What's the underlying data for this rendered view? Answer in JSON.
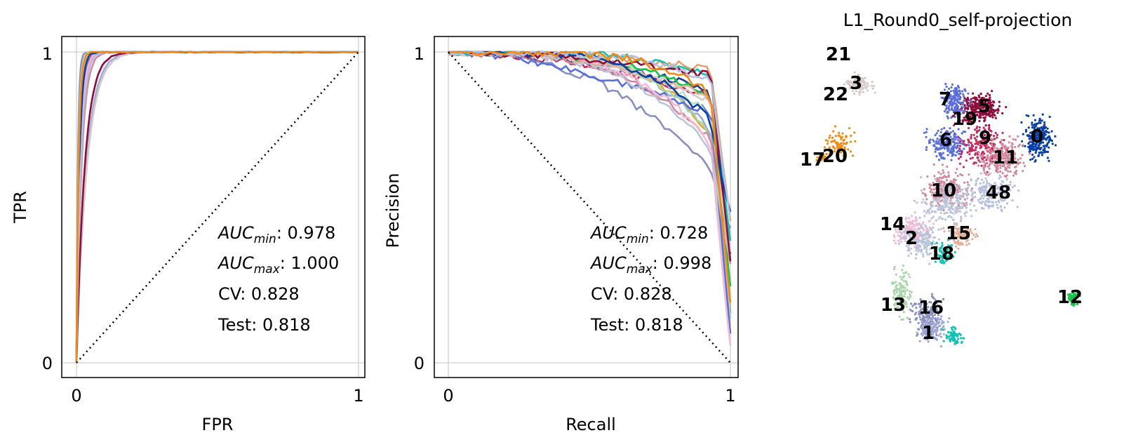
{
  "colors": {
    "grid": "#d0d0d0",
    "frame": "#000000",
    "palette": [
      "#1f3b8f",
      "#c42a5d",
      "#14c24a",
      "#f0a020",
      "#9fa8d8",
      "#8a8fc0",
      "#e0a070",
      "#d7c9c9",
      "#a8d8a8",
      "#5a6fdc",
      "#c0e0c8",
      "#d18a9c",
      "#f5b8d5",
      "#b9c4da",
      "#11c2b4",
      "#e3b09a",
      "#8f0c3b",
      "#0a3fa6",
      "#b6bfe0",
      "#f08a10"
    ]
  },
  "legend_text": {
    "roc": {
      "auc_min_label": "AUC",
      "auc_min_sub": "min",
      "auc_min_val": ": 0.978",
      "auc_max_label": "AUC",
      "auc_max_sub": "max",
      "auc_max_val": ": 1.000",
      "cv": "CV: 0.828",
      "test": "Test: 0.818"
    },
    "pr": {
      "auc_min_label": "AUC",
      "auc_min_sub": "min",
      "auc_min_val": ": 0.728",
      "auc_max_label": "AUC",
      "auc_max_sub": "max",
      "auc_max_val": ": 0.998",
      "cv": "CV: 0.828",
      "test": "Test: 0.818"
    }
  },
  "chart_data": [
    {
      "type": "line",
      "xlabel": "FPR",
      "ylabel": "TPR",
      "xlim": [
        0,
        1
      ],
      "ylim": [
        0,
        1
      ],
      "xticks": [
        "0",
        "1"
      ],
      "yticks": [
        "0",
        "1"
      ],
      "grid": true,
      "diagonal": {
        "from": [
          0,
          0
        ],
        "to": [
          1,
          1
        ],
        "style": "dotted"
      },
      "auc_min": 0.978,
      "auc_max": 1.0,
      "cv": 0.828,
      "test": 0.818,
      "series_count": 20
    },
    {
      "type": "line",
      "xlabel": "Recall",
      "ylabel": "Precision",
      "xlim": [
        0,
        1
      ],
      "ylim": [
        0,
        1
      ],
      "xticks": [
        "0",
        "1"
      ],
      "yticks": [
        "0",
        "1"
      ],
      "grid": true,
      "diagonal": {
        "from": [
          0,
          1
        ],
        "to": [
          1,
          0
        ],
        "style": "dotted"
      },
      "auc_min": 0.728,
      "auc_max": 0.998,
      "cv": 0.828,
      "test": 0.818,
      "series_count": 20
    },
    {
      "type": "scatter",
      "title": "L1_Round0_self-projection",
      "cluster_labels": [
        "0",
        "1",
        "2",
        "3",
        "5",
        "6",
        "7",
        "9",
        "10",
        "11",
        "12",
        "13",
        "14",
        "15",
        "16",
        "17",
        "18",
        "19",
        "20",
        "21",
        "22",
        "48"
      ]
    }
  ]
}
